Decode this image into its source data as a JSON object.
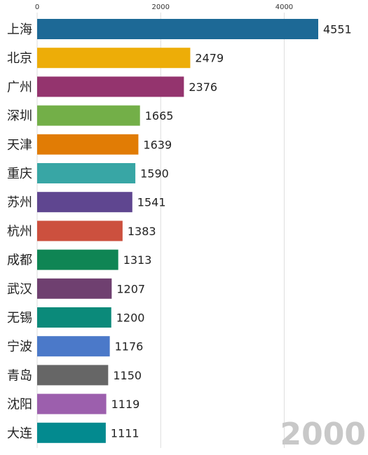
{
  "chart_data": {
    "type": "bar",
    "orientation": "horizontal",
    "categories": [
      "上海",
      "北京",
      "广州",
      "深圳",
      "天津",
      "重庆",
      "苏州",
      "杭州",
      "成都",
      "武汉",
      "无锡",
      "宁波",
      "青岛",
      "沈阳",
      "大连"
    ],
    "values": [
      4551,
      2479,
      2376,
      1665,
      1639,
      1590,
      1541,
      1383,
      1313,
      1207,
      1200,
      1176,
      1150,
      1119,
      1111
    ],
    "value_labels": [
      "4551",
      "2479",
      "2376",
      "1665",
      "1639",
      "1590",
      "1541",
      "1383",
      "1313",
      "1207",
      "1200",
      "1176",
      "1150",
      "1119",
      "1111"
    ],
    "colors": [
      "#1d6996",
      "#edad08",
      "#94346e",
      "#73af48",
      "#e17c05",
      "#38a6a5",
      "#5f4690",
      "#cc503e",
      "#0f8554",
      "#6f4070",
      "#0b8a7a",
      "#4b79c9",
      "#666666",
      "#9c5fad",
      "#038a8f"
    ],
    "x_ticks": [
      "0",
      "2000",
      "4000"
    ],
    "x_tick_values": [
      0,
      2000,
      4000
    ],
    "xlim": [
      0,
      5300
    ],
    "grid": true,
    "legend": "none",
    "period_label": "2000",
    "title": "",
    "xlabel": "",
    "ylabel": ""
  }
}
